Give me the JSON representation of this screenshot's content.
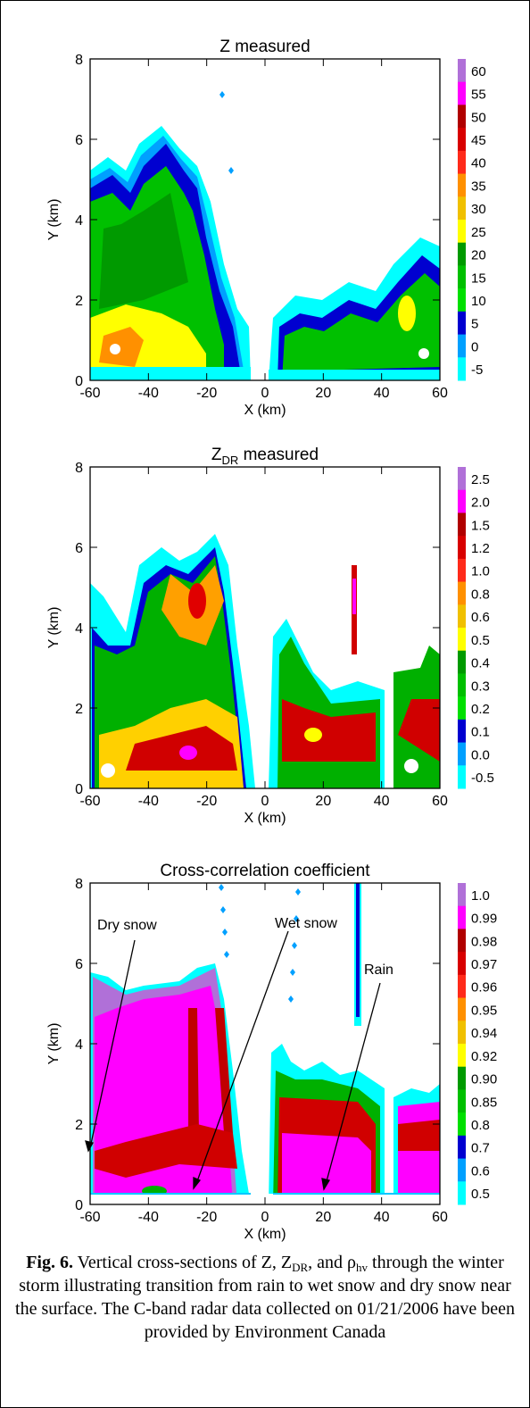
{
  "chart_data": [
    {
      "type": "contour",
      "title": "Z measured",
      "xlabel": "X (km)",
      "ylabel": "Y (km)",
      "xlim": [
        -60,
        60
      ],
      "ylim": [
        0,
        8
      ],
      "xticks": [
        -60,
        -40,
        -20,
        0,
        20,
        40,
        60
      ],
      "yticks": [
        0,
        2,
        4,
        6,
        8
      ],
      "colorbar": {
        "ticks": [
          60,
          55,
          50,
          45,
          40,
          35,
          30,
          25,
          20,
          15,
          10,
          5,
          0,
          -5
        ],
        "colors": [
          "#b070d8",
          "#ff00ff",
          "#b00000",
          "#d80000",
          "#ff2a1a",
          "#ff9000",
          "#f0c000",
          "#ffff00",
          "#009a00",
          "#00c000",
          "#00e000",
          "#0000d0",
          "#00a0ff",
          "#00ffff"
        ]
      }
    },
    {
      "type": "contour",
      "title": [
        "Z",
        "DR",
        " measured"
      ],
      "xlabel": "X (km)",
      "ylabel": "Y (km)",
      "xlim": [
        -60,
        60
      ],
      "ylim": [
        0,
        8
      ],
      "xticks": [
        -60,
        -40,
        -20,
        0,
        20,
        40,
        60
      ],
      "yticks": [
        0,
        2,
        4,
        6,
        8
      ],
      "colorbar": {
        "ticks": [
          2.5,
          {
            "value": 2.0,
            "label": "2.0"
          },
          1.5,
          1.2,
          {
            "value": 1.0,
            "label": "1.0"
          },
          0.8,
          0.6,
          0.5,
          0.4,
          0.3,
          0.2,
          0.1,
          {
            "value": 0.0,
            "label": "0.0"
          },
          -0.5
        ],
        "colors": [
          "#b070d8",
          "#ff00ff",
          "#b00000",
          "#d80000",
          "#ff2a1a",
          "#ff9000",
          "#f0c000",
          "#ffff00",
          "#009a00",
          "#00c000",
          "#00e000",
          "#0000d0",
          "#00a0ff",
          "#00ffff"
        ]
      }
    },
    {
      "type": "contour",
      "title": "Cross-correlation coefficient",
      "xlabel": "X (km)",
      "ylabel": "Y (km)",
      "xlim": [
        -60,
        60
      ],
      "ylim": [
        0,
        8
      ],
      "xticks": [
        -60,
        -40,
        -20,
        0,
        20,
        40,
        60
      ],
      "yticks": [
        0,
        2,
        4,
        6,
        8
      ],
      "colorbar": {
        "ticks": [
          {
            "value": 1.0,
            "label": "1.0"
          },
          0.99,
          0.98,
          0.97,
          0.96,
          0.95,
          0.94,
          0.92,
          {
            "value": 0.9,
            "label": "0.90"
          },
          0.85,
          0.8,
          0.7,
          0.6,
          0.5
        ],
        "colors": [
          "#b070d8",
          "#ff00ff",
          "#b00000",
          "#d80000",
          "#ff2a1a",
          "#ff9000",
          "#f0c000",
          "#ffff00",
          "#009a00",
          "#00c000",
          "#00e000",
          "#0000d0",
          "#00a0ff",
          "#00ffff"
        ]
      },
      "annotations": [
        "Dry snow",
        "Wet snow",
        "Rain"
      ]
    }
  ],
  "caption": {
    "label": "Fig. 6.",
    "parts": [
      " Vertical cross-sections of Z, Z",
      "DR",
      ", and ρ",
      "hv",
      " through the winter storm illustrating transition from rain to wet snow and dry snow near the surface. The C-band radar data collected on 01/21/2006 have been provided by Environment Canada"
    ]
  }
}
